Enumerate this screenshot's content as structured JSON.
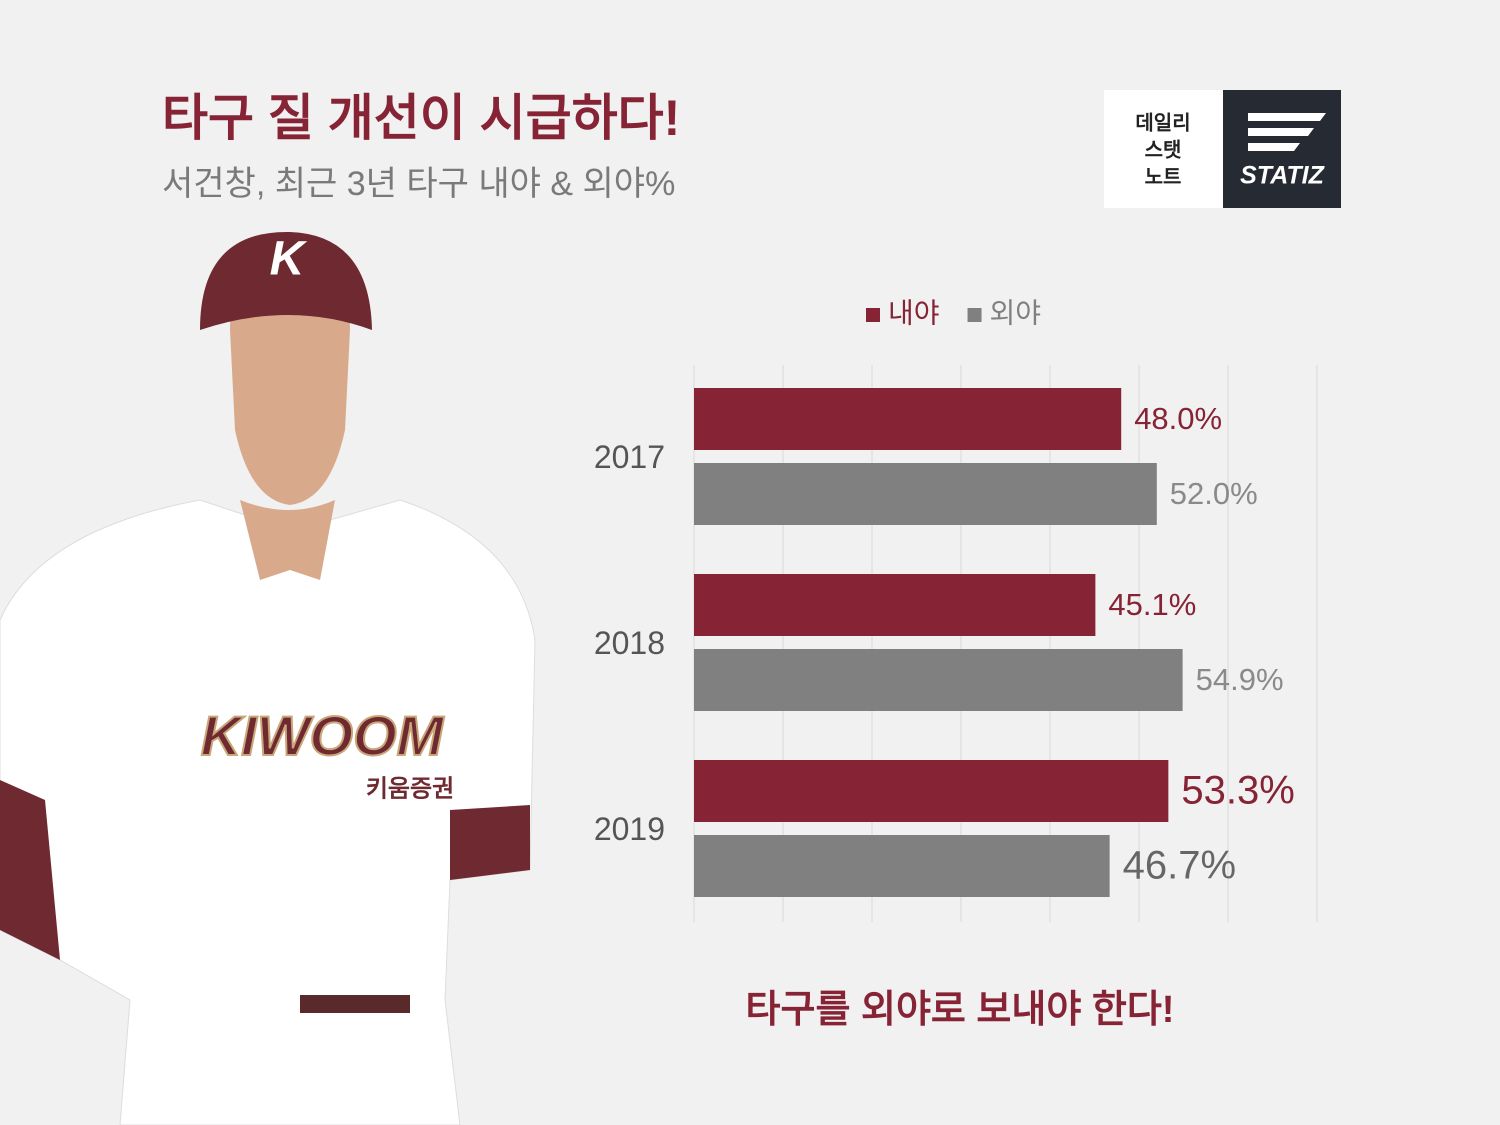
{
  "chart_data": {
    "type": "hbar",
    "title": "타구 질 개선이 시급하다!",
    "subtitle": "서건창, 최근 3년 타구 내야 & 외야%",
    "annotation": "타구를 외야로 보내야 한다!",
    "categories": [
      "2017",
      "2018",
      "2019"
    ],
    "series": [
      {
        "name": "내야",
        "color": "#862436",
        "values": [
          48.0,
          45.1,
          53.3
        ],
        "value_labels": [
          "48.0%",
          "45.1%",
          "53.3%"
        ]
      },
      {
        "name": "외야",
        "color": "#808080",
        "values": [
          52.0,
          54.9,
          46.7
        ],
        "value_labels": [
          "52.0%",
          "54.9%",
          "46.7%"
        ]
      }
    ],
    "xlim": [
      0,
      70
    ],
    "xticks": [
      0,
      10,
      20,
      30,
      40,
      50,
      60,
      70
    ],
    "grid": true,
    "legend": "top"
  },
  "logo": {
    "label": [
      "데일리",
      "스탯",
      "노트"
    ],
    "brand": "STATIZ"
  },
  "photo": {
    "cap_logo": "K",
    "jersey_wordmark": "KIWOOM",
    "jersey_sponsor": "키움증권"
  }
}
